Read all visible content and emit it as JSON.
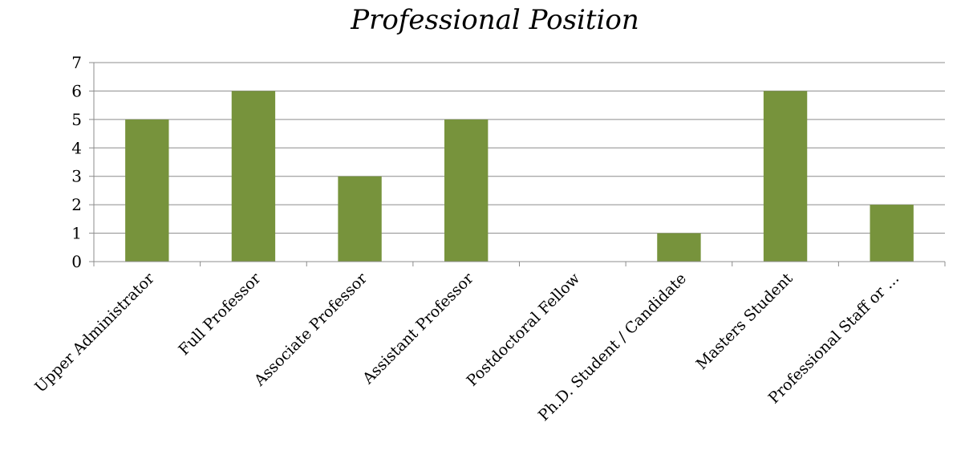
{
  "chart_data": {
    "type": "bar",
    "title": "Professional Position",
    "xlabel": "",
    "ylabel": "",
    "categories": [
      "Upper Administrator",
      "Full Professor",
      "Associate Professor",
      "Assistant Professor",
      "Postdoctoral Fellow",
      "Ph.D. Student / Candidate",
      "Masters Student",
      "Professional Staff or ..."
    ],
    "values": [
      5,
      6,
      3,
      5,
      0,
      1,
      6,
      2
    ],
    "ylim": [
      0,
      7
    ],
    "yticks": [
      "0",
      "1",
      "2",
      "3",
      "4",
      "5",
      "6",
      "7"
    ],
    "grid": true,
    "legend": "none",
    "bar_color": "#77933c"
  }
}
